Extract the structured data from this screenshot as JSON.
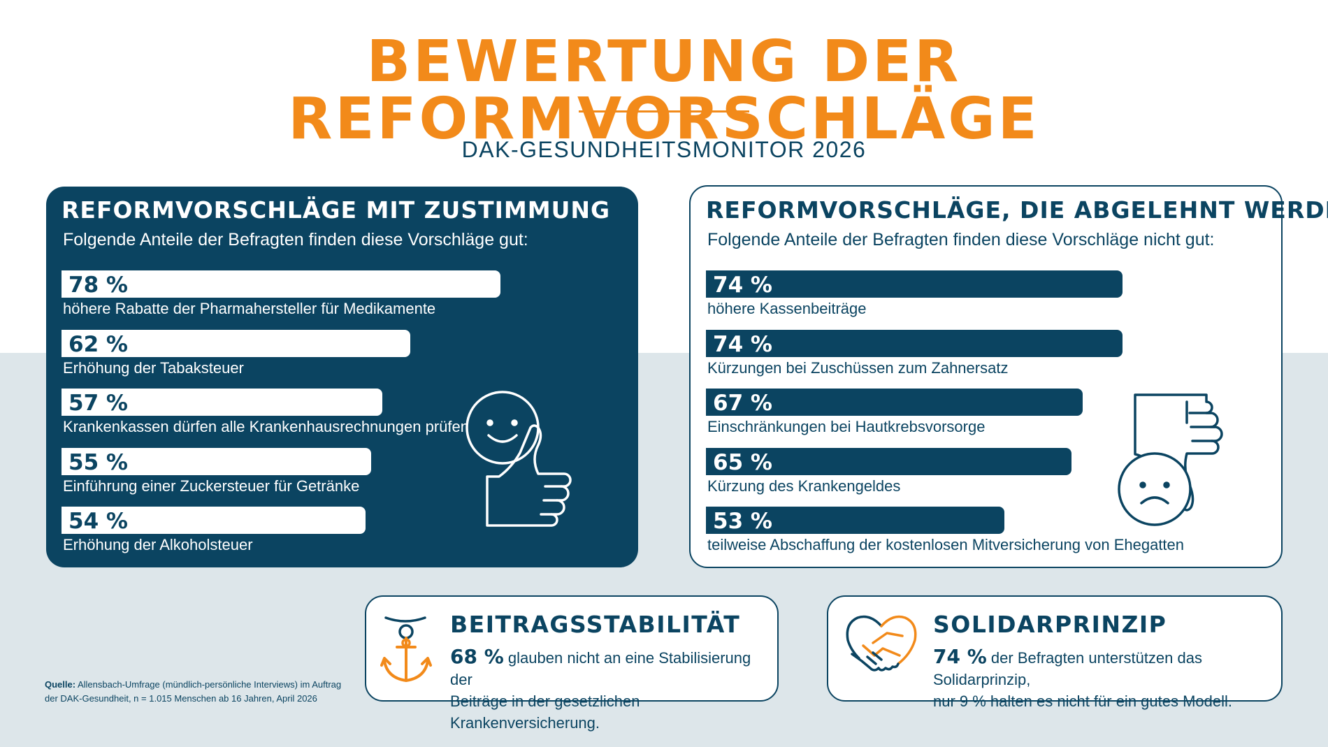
{
  "title": "BEWERTUNG DER REFORMVORSCHLÄGE",
  "subtitle": "DAK-GESUNDHEITSMONITOR 2026",
  "colors": {
    "navy": "#0b4461",
    "orange": "#f28a1a",
    "light_bg": "#dde6ea"
  },
  "chart_data": [
    {
      "type": "bar",
      "title": "REFORMVORSCHLÄGE MIT ZUSTIMMUNG",
      "subtitle": "Folgende Anteile der Befragten finden diese Vorschläge gut:",
      "categories": [
        "höhere Rabatte der Pharmahersteller für Medikamente",
        "Erhöhung der Tabaksteuer",
        "Krankenkassen dürfen alle Krankenhausrechnungen prüfen",
        "Einführung einer Zuckersteuer für Getränke",
        "Erhöhung der Alkoholsteuer"
      ],
      "values": [
        78,
        62,
        57,
        55,
        54
      ],
      "value_labels": [
        "78 %",
        "62 %",
        "57 %",
        "55 %",
        "54 %"
      ],
      "unit": "%",
      "orientation": "horizontal"
    },
    {
      "type": "bar",
      "title": "REFORMVORSCHLÄGE, DIE ABGELEHNT WERDEN",
      "subtitle": "Folgende Anteile der Befragten finden diese Vorschläge nicht gut:",
      "categories": [
        "höhere Kassenbeiträge",
        "Kürzungen bei Zuschüssen zum Zahnersatz",
        "Einschränkungen bei Hautkrebsvorsorge",
        "Kürzung des Krankengeldes",
        "teilweise Abschaffung der kostenlosen Mitversicherung von Ehegatten"
      ],
      "values": [
        74,
        74,
        67,
        65,
        53
      ],
      "value_labels": [
        "74 %",
        "74 %",
        "67 %",
        "65 %",
        "53 %"
      ],
      "unit": "%",
      "orientation": "horizontal"
    }
  ],
  "icons": {
    "approve": "thumbs-up-smiley-icon",
    "reject": "thumbs-down-sad-icon",
    "anchor": "anchor-icon",
    "handshake": "handshake-heart-icon"
  },
  "cards": {
    "stability": {
      "heading": "BEITRAGSSTABILITÄT",
      "value": "68 %",
      "text_line1": "glauben nicht an eine Stabilisierung der",
      "text_line2": "Beiträge in der gesetzlichen Krankenversicherung."
    },
    "solidarity": {
      "heading": "SOLIDARPRINZIP",
      "value": "74 %",
      "text_line1": "der Befragten unterstützen das Solidarprinzip,",
      "text_line2": "nur 9 % halten es nicht für ein gutes Modell."
    }
  },
  "source": {
    "label": "Quelle:",
    "line1": "Allensbach-Umfrage (mündlich-persönliche Interviews) im Auftrag",
    "line2": "der DAK-Gesundheit, n = 1.015 Menschen ab 16 Jahren, April 2026"
  }
}
